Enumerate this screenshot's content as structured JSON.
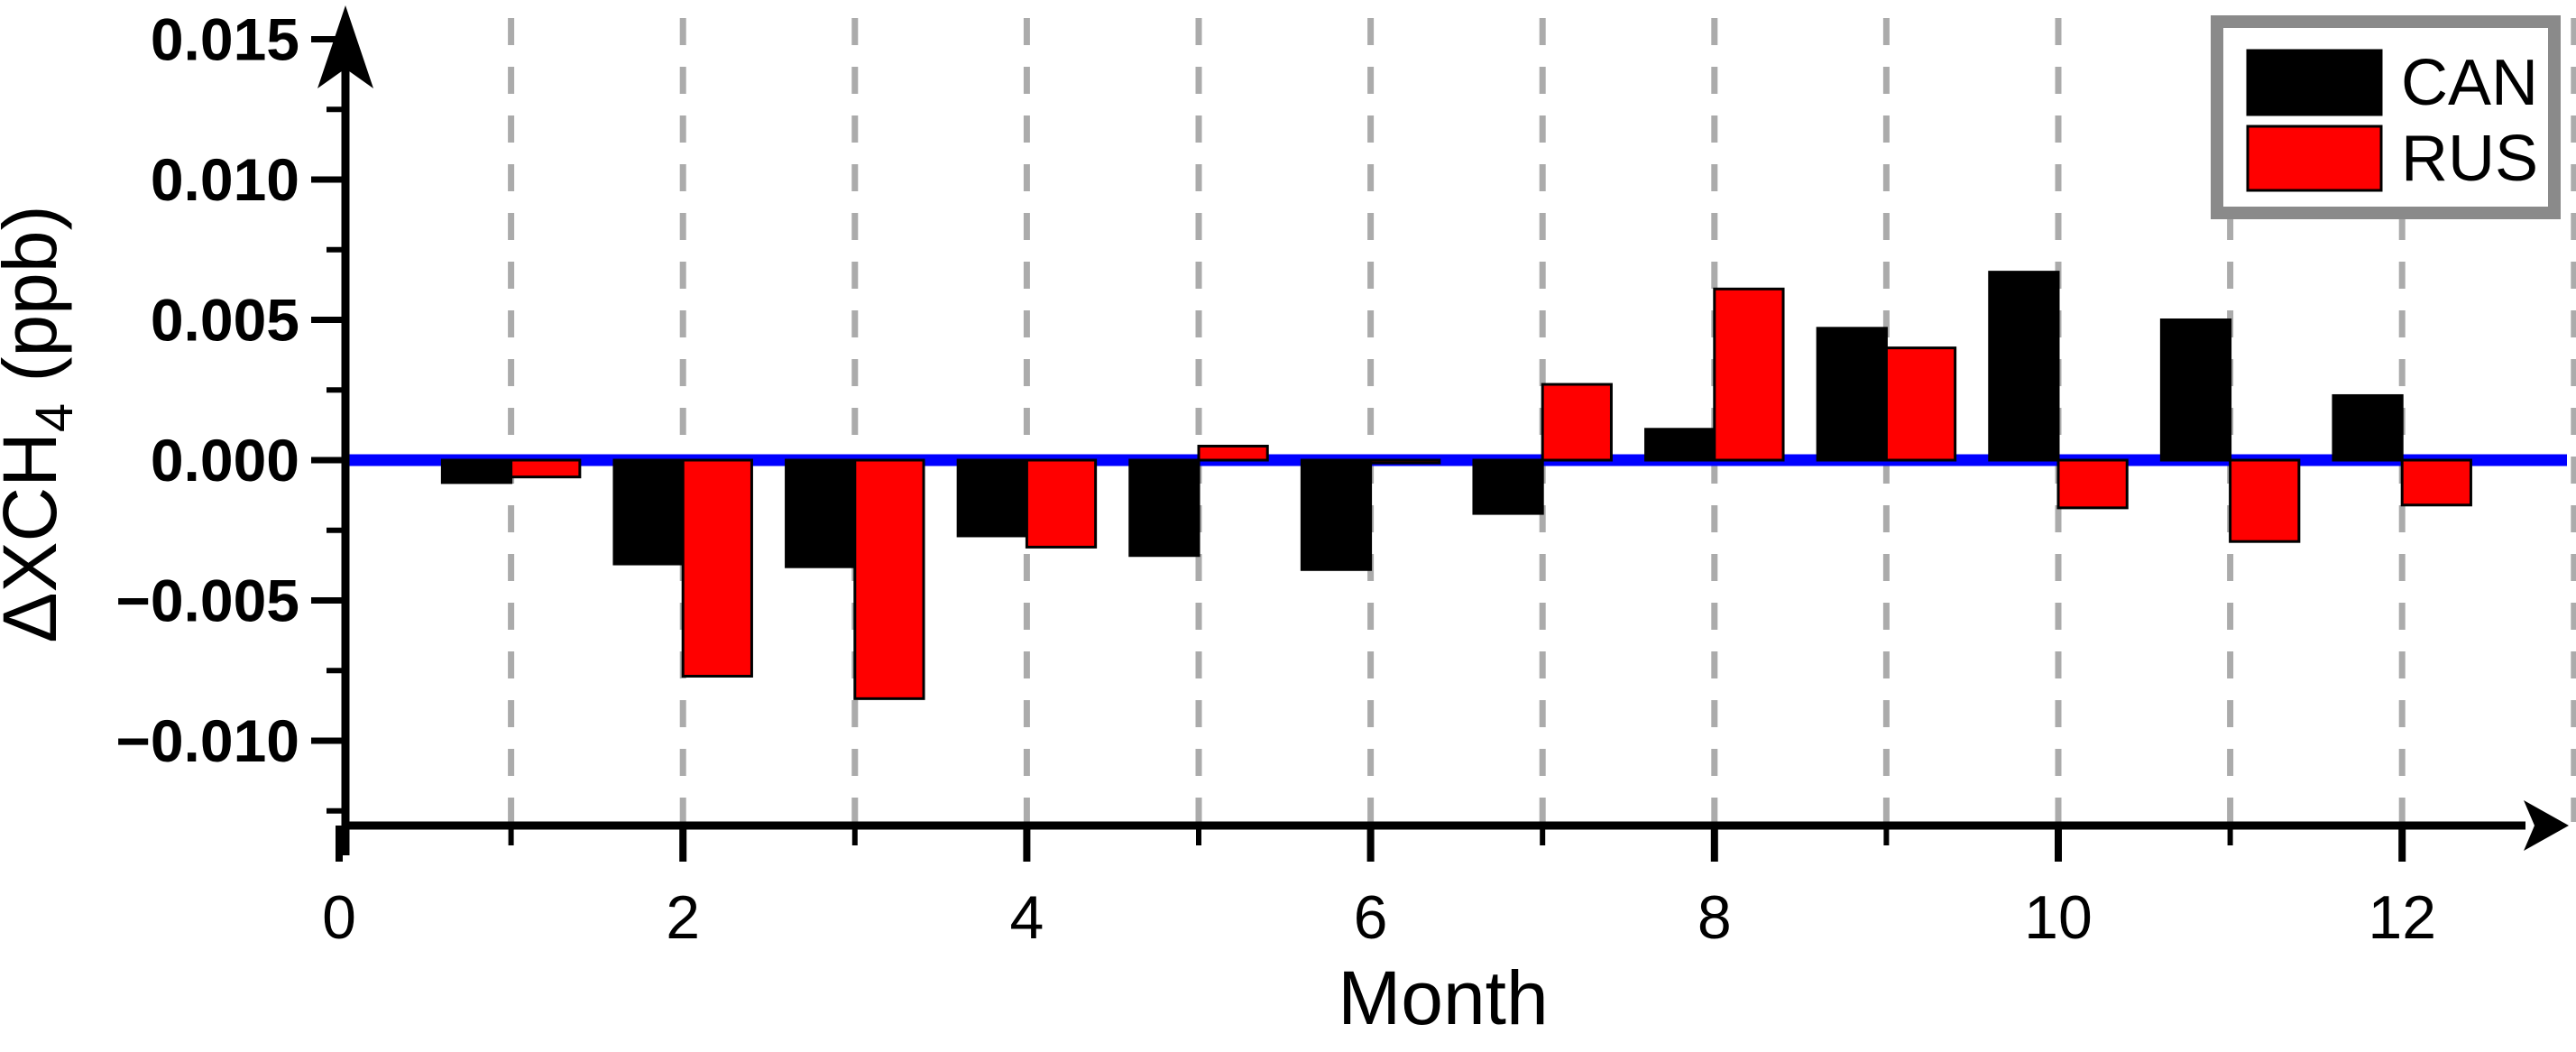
{
  "figure": {
    "x_axis_title": "Month",
    "y_axis_title_main": "ΔXCH",
    "y_axis_title_sub": "4",
    "y_axis_title_unit": " (ppb)"
  },
  "legend": {
    "items": [
      {
        "label": "CAN",
        "color": "#000000"
      },
      {
        "label": "RUS",
        "color": "#ff0000"
      }
    ]
  },
  "colors": {
    "zero_line": "#0000ff",
    "gridline": "#ababab",
    "axis": "#000000",
    "bar_outline": "#000000",
    "legend_border": "#8a8a8a",
    "background": "#ffffff"
  },
  "chart_data": {
    "type": "bar",
    "title": "",
    "xlabel": "Month",
    "ylabel": "ΔXCH4 (ppb)",
    "x": [
      1,
      2,
      3,
      4,
      5,
      6,
      7,
      8,
      9,
      10,
      11,
      12
    ],
    "series": [
      {
        "name": "CAN",
        "color": "#000000",
        "values": [
          -0.0008,
          -0.0037,
          -0.0038,
          -0.0027,
          -0.0034,
          -0.0039,
          -0.0019,
          0.0011,
          0.0047,
          0.0067,
          0.005,
          0.0023
        ]
      },
      {
        "name": "RUS",
        "color": "#ff0000",
        "values": [
          -0.0006,
          -0.0077,
          -0.0085,
          -0.0031,
          0.0005,
          -0.0001,
          0.0027,
          0.0061,
          0.004,
          -0.0017,
          -0.0029,
          -0.0016
        ]
      }
    ],
    "y_ticks": [
      {
        "label": "0.015",
        "value": 0.015
      },
      {
        "label": "0.010",
        "value": 0.01
      },
      {
        "label": "0.005",
        "value": 0.005
      },
      {
        "label": "0.000",
        "value": 0.0
      },
      {
        "label": "−0.005",
        "value": -0.005
      },
      {
        "label": "−0.010",
        "value": -0.01
      }
    ],
    "y_minor_ticks": [
      0.0125,
      0.0075,
      0.0025,
      -0.0025,
      -0.0075,
      -0.0125
    ],
    "x_ticks": [
      {
        "label": "0",
        "value": 0
      },
      {
        "label": "2",
        "value": 2
      },
      {
        "label": "4",
        "value": 4
      },
      {
        "label": "6",
        "value": 6
      },
      {
        "label": "8",
        "value": 8
      },
      {
        "label": "10",
        "value": 10
      },
      {
        "label": "12",
        "value": 12
      }
    ],
    "x_minor_ticks": [
      1,
      3,
      5,
      7,
      9,
      11,
      13
    ],
    "gridline_months": [
      1,
      2,
      3,
      4,
      5,
      6,
      7,
      8,
      9,
      10,
      11,
      12,
      13
    ],
    "ylim": [
      -0.013,
      0.0155
    ],
    "xlim": [
      0,
      13.3
    ],
    "grid": "vertical-dashed",
    "legend_position": "top-right",
    "zero_line": 0.0
  }
}
